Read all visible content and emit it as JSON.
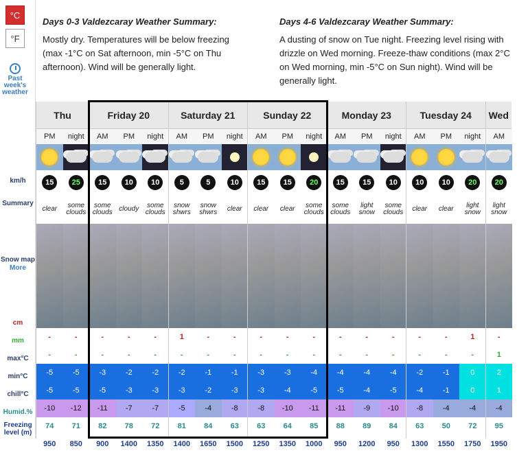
{
  "units": {
    "celsius": "°C",
    "fahrenheit": "°F"
  },
  "past": {
    "label_lines": [
      "Past",
      "week's",
      "weather"
    ]
  },
  "row_labels": {
    "wind": "km/h",
    "summary": "Summary",
    "snow_map": "Snow map",
    "more": "More",
    "snow": "cm",
    "rain": "mm",
    "max": "max°C",
    "min": "min°C",
    "chill": "chill°C",
    "humid": "Humid.%",
    "freezing": "Freezing level (m)"
  },
  "summary": {
    "left_title": "Days 0-3 Valdezcaray Weather Summary:",
    "left_text": "Mostly dry. Temperatures will be below freezing (max -1°C on Sat afternoon, min -5°C on Thu afternoon). Wind will be generally light.",
    "right_title": "Days 4-6 Valdezcaray Weather Summary:",
    "right_text": "A dusting of snow on Tue night. Freezing level rising with drizzle on Wed morning. Freeze-thaw conditions (max 2°C on Wed morning, min -5°C on Sun night). Wind will be generally light."
  },
  "days": [
    {
      "name": "Thu",
      "cols": [
        {
          "time": "PM",
          "icon": "sun-icon",
          "wind": "15",
          "green": false,
          "sum": "clear",
          "snow": "-",
          "rain": "-",
          "max": "-5",
          "min": "-5",
          "chill": "-10",
          "hum": "74",
          "frz": "950"
        },
        {
          "time": "night",
          "icon": "cloud-icon",
          "wind": "25",
          "green": true,
          "sum": "some clouds",
          "snow": "-",
          "rain": "-",
          "max": "-5",
          "min": "-5",
          "chill": "-12",
          "hum": "71",
          "frz": "850"
        }
      ]
    },
    {
      "name": "Friday 20",
      "cols": [
        {
          "time": "AM",
          "icon": "sun-cloud-icon",
          "wind": "15",
          "green": false,
          "sum": "some clouds",
          "snow": "-",
          "rain": "-",
          "max": "-3",
          "min": "-5",
          "chill": "-11",
          "hum": "82",
          "frz": "900"
        },
        {
          "time": "PM",
          "icon": "cloud-icon",
          "wind": "10",
          "green": false,
          "sum": "cloudy",
          "snow": "-",
          "rain": "-",
          "max": "-2",
          "min": "-3",
          "chill": "-7",
          "hum": "78",
          "frz": "1400"
        },
        {
          "time": "night",
          "icon": "cloud-icon",
          "wind": "10",
          "green": false,
          "sum": "some clouds",
          "snow": "-",
          "rain": "-",
          "max": "-2",
          "min": "-3",
          "chill": "-7",
          "hum": "72",
          "frz": "1350"
        }
      ]
    },
    {
      "name": "Saturday 21",
      "cols": [
        {
          "time": "AM",
          "icon": "snow-shower-icon",
          "wind": "5",
          "green": false,
          "sum": "snow shwrs",
          "snow": "1",
          "rain": "-",
          "max": "-2",
          "min": "-3",
          "chill": "-5",
          "hum": "81",
          "frz": "1400"
        },
        {
          "time": "PM",
          "icon": "snow-shower-icon",
          "wind": "5",
          "green": false,
          "sum": "snow shwrs",
          "snow": "-",
          "rain": "-",
          "max": "-1",
          "min": "-2",
          "chill": "-4",
          "hum": "84",
          "frz": "1650"
        },
        {
          "time": "night",
          "icon": "moon-icon",
          "wind": "10",
          "green": false,
          "sum": "clear",
          "snow": "-",
          "rain": "-",
          "max": "-1",
          "min": "-3",
          "chill": "-8",
          "hum": "63",
          "frz": "1500"
        }
      ]
    },
    {
      "name": "Sunday 22",
      "cols": [
        {
          "time": "AM",
          "icon": "sun-icon",
          "wind": "15",
          "green": false,
          "sum": "clear",
          "snow": "-",
          "rain": "-",
          "max": "-3",
          "min": "-3",
          "chill": "-8",
          "hum": "63",
          "frz": "1250"
        },
        {
          "time": "PM",
          "icon": "sun-icon",
          "wind": "15",
          "green": false,
          "sum": "clear",
          "snow": "-",
          "rain": "-",
          "max": "-3",
          "min": "-4",
          "chill": "-10",
          "hum": "64",
          "frz": "1350"
        },
        {
          "time": "night",
          "icon": "moon-icon",
          "wind": "20",
          "green": true,
          "sum": "some clouds",
          "snow": "-",
          "rain": "-",
          "max": "-4",
          "min": "-5",
          "chill": "-11",
          "hum": "85",
          "frz": "1000"
        }
      ]
    },
    {
      "name": "Monday 23",
      "cols": [
        {
          "time": "AM",
          "icon": "sun-cloud-icon",
          "wind": "15",
          "green": false,
          "sum": "some clouds",
          "snow": "-",
          "rain": "-",
          "max": "-4",
          "min": "-5",
          "chill": "-11",
          "hum": "88",
          "frz": "950"
        },
        {
          "time": "PM",
          "icon": "light-snow-icon",
          "wind": "15",
          "green": false,
          "sum": "light snow",
          "snow": "-",
          "rain": "-",
          "max": "-4",
          "min": "-4",
          "chill": "-9",
          "hum": "89",
          "frz": "1200"
        },
        {
          "time": "night",
          "icon": "cloud-icon",
          "wind": "10",
          "green": false,
          "sum": "some clouds",
          "snow": "-",
          "rain": "-",
          "max": "-4",
          "min": "-5",
          "chill": "-10",
          "hum": "84",
          "frz": "950"
        }
      ]
    },
    {
      "name": "Tuesday 24",
      "cols": [
        {
          "time": "AM",
          "icon": "sun-icon",
          "wind": "10",
          "green": false,
          "sum": "clear",
          "snow": "-",
          "rain": "-",
          "max": "-2",
          "min": "-4",
          "chill": "-8",
          "hum": "63",
          "frz": "1300"
        },
        {
          "time": "PM",
          "icon": "sun-icon",
          "wind": "10",
          "green": false,
          "sum": "clear",
          "snow": "-",
          "rain": "-",
          "max": "-1",
          "min": "-1",
          "chill": "-4",
          "hum": "50",
          "frz": "1550"
        },
        {
          "time": "night",
          "icon": "light-snow-icon",
          "wind": "20",
          "green": true,
          "sum": "light snow",
          "snow": "1",
          "rain": "-",
          "max": "0",
          "min": "0",
          "chill": "-4",
          "hum": "72",
          "frz": "1750"
        }
      ]
    },
    {
      "name": "Wed",
      "cols": [
        {
          "time": "AM",
          "icon": "light-snow-icon",
          "wind": "20",
          "green": true,
          "sum": "light snow",
          "snow": "-",
          "rain": "1",
          "max": "2",
          "min": "1",
          "chill": "-4",
          "hum": "95",
          "frz": "1950"
        }
      ]
    }
  ]
}
